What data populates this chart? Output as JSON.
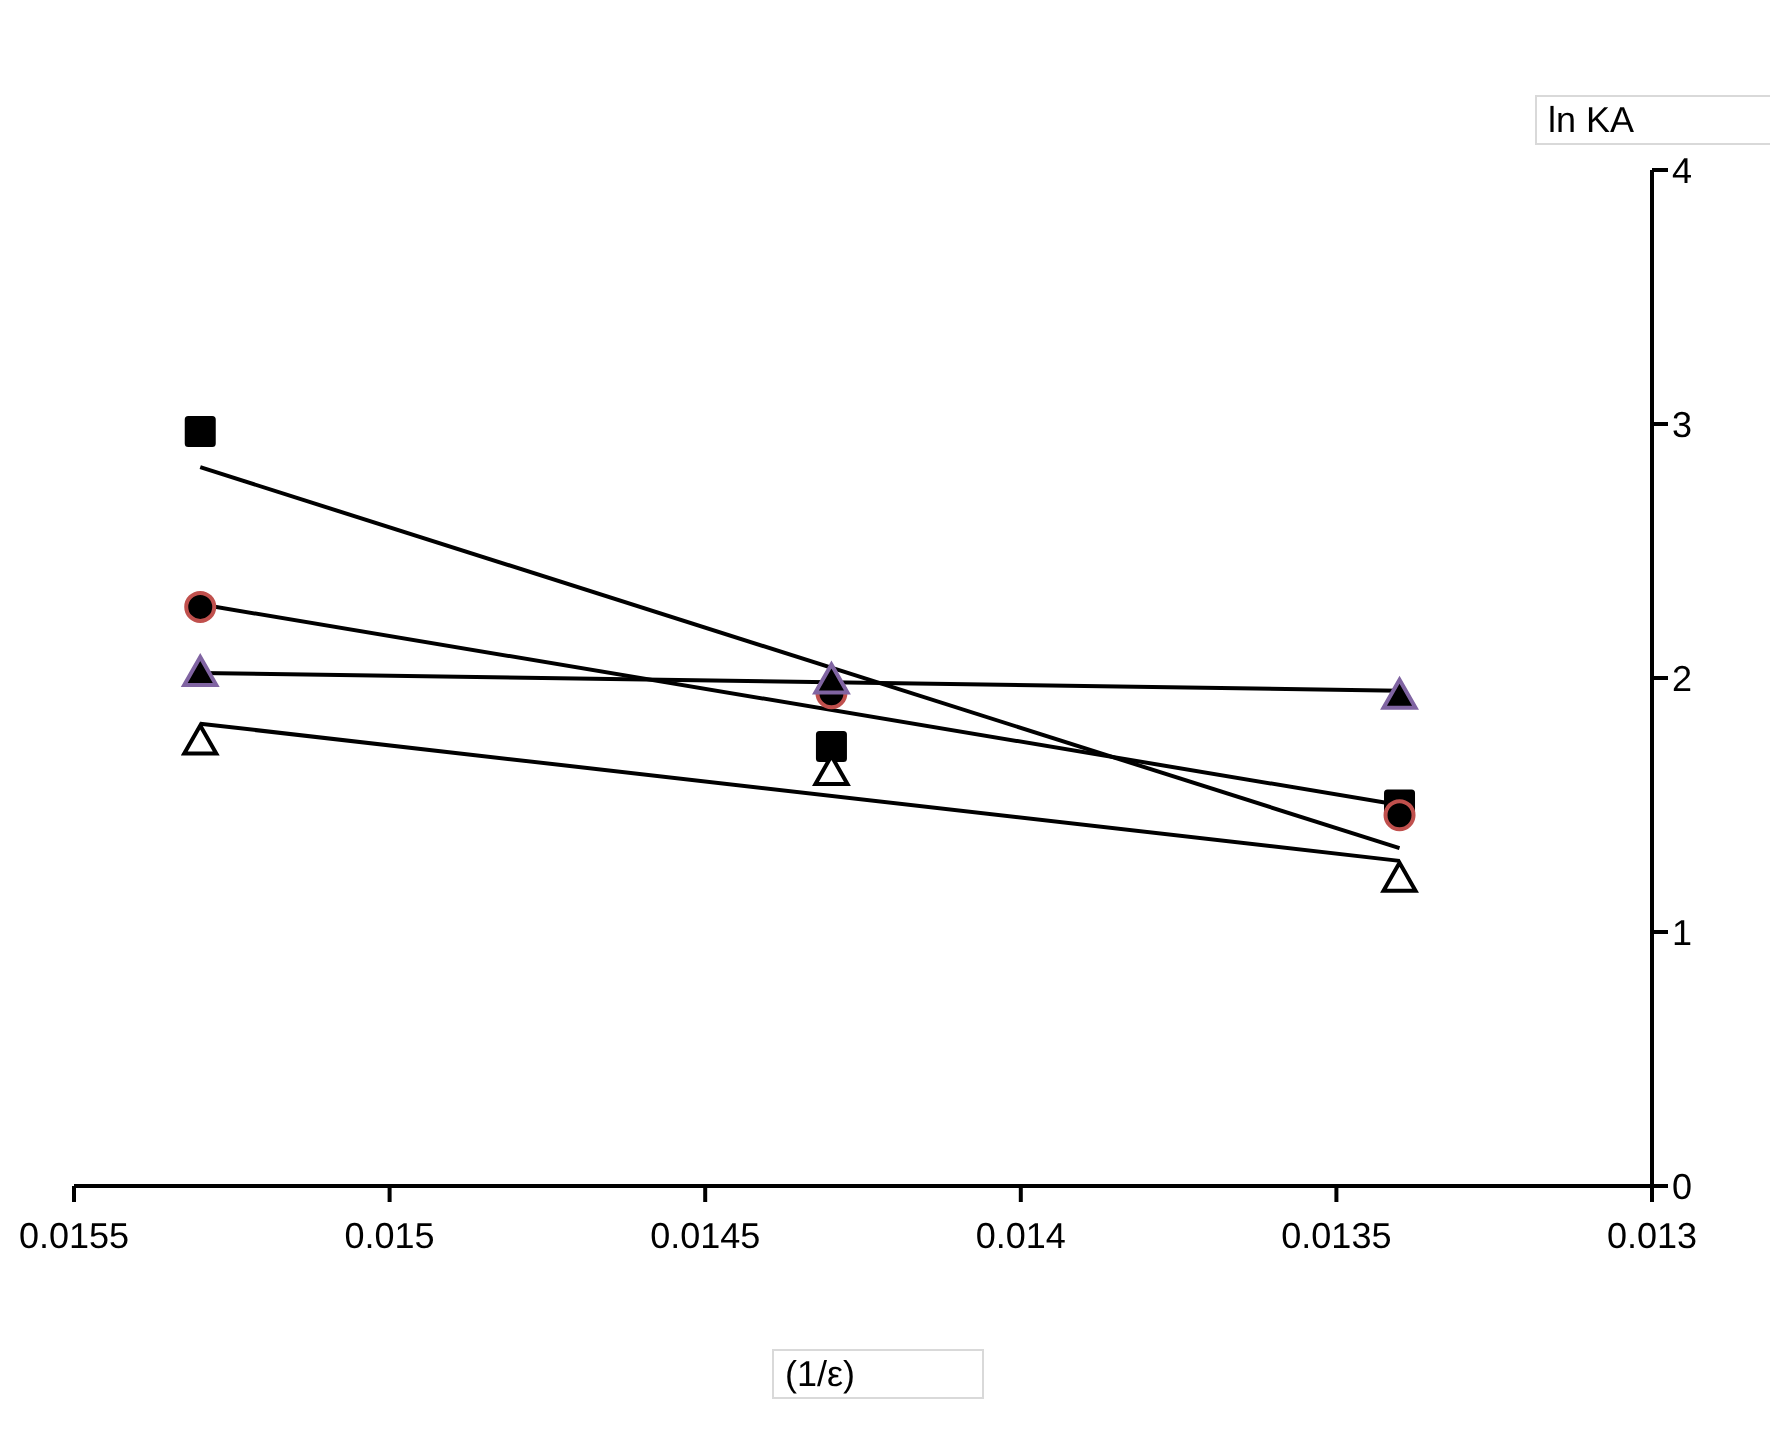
{
  "chart_data": {
    "type": "scatter",
    "xlabel": "(1/ε)",
    "ylabel": "ln KA",
    "xlim": [
      0.0155,
      0.013
    ],
    "xticks": [
      0.0155,
      0.015,
      0.0145,
      0.014,
      0.0135,
      0.013
    ],
    "ylim": [
      0,
      4
    ],
    "yticks": [
      0,
      1,
      2,
      3,
      4
    ],
    "grid": false,
    "series": [
      {
        "type": "line",
        "x": [
          0.0153,
          0.0134
        ],
        "values": [
          2.83,
          1.33
        ],
        "color": "#000000",
        "marker": "none"
      },
      {
        "type": "line",
        "x": [
          0.0153,
          0.0134
        ],
        "values": [
          2.29,
          1.5
        ],
        "color": "#000000",
        "marker": "none"
      },
      {
        "type": "line",
        "x": [
          0.0153,
          0.0134
        ],
        "values": [
          2.02,
          1.95
        ],
        "color": "#000000",
        "marker": "none"
      },
      {
        "type": "line",
        "x": [
          0.0153,
          0.0134
        ],
        "values": [
          1.82,
          1.28
        ],
        "color": "#000000",
        "marker": "none"
      },
      {
        "x": [
          0.0153,
          0.0143,
          0.0134
        ],
        "values": [
          2.97,
          1.73,
          1.5
        ],
        "color": "#000000",
        "marker": "square"
      },
      {
        "x": [
          0.0153,
          0.0143,
          0.0134
        ],
        "values": [
          2.28,
          1.94,
          1.46
        ],
        "color": "#c0504d",
        "marker": "circle"
      },
      {
        "x": [
          0.0153,
          0.0143,
          0.0134
        ],
        "values": [
          2.02,
          1.99,
          1.93
        ],
        "color": "#8064a2",
        "marker": "triangle"
      },
      {
        "x": [
          0.0153,
          0.0143,
          0.0134
        ],
        "values": [
          1.75,
          1.63,
          1.21
        ],
        "color": "#ffffff",
        "marker": "triangle"
      }
    ]
  }
}
